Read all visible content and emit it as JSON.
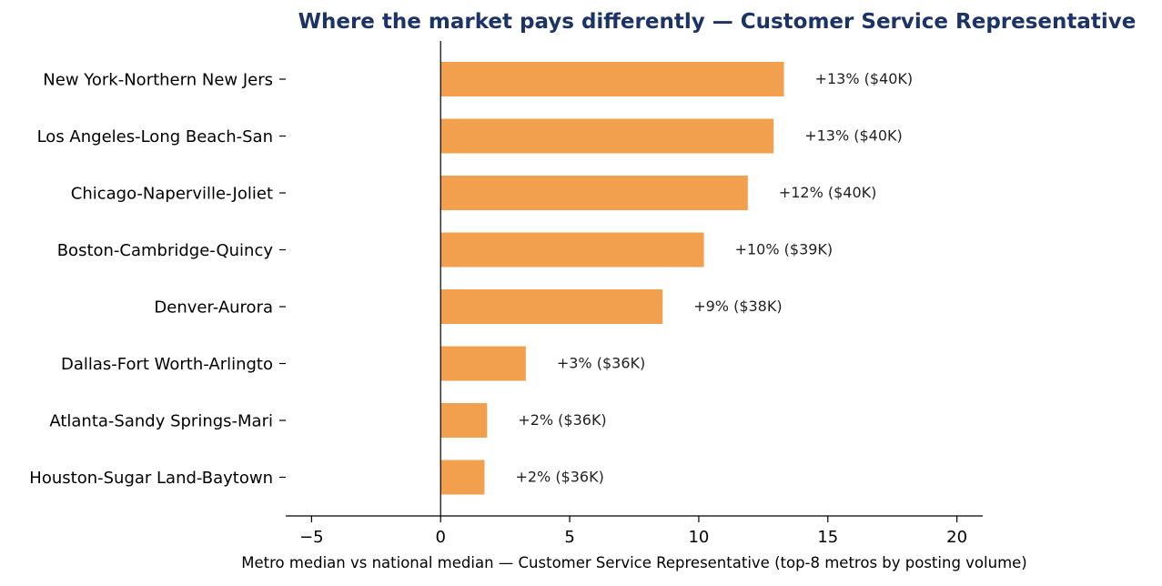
{
  "chart_data": {
    "type": "bar",
    "orientation": "horizontal",
    "title": "Where the market pays differently — Customer Service Representative",
    "xlabel": "Metro median vs national median — Customer Service Representative (top-8 metros by posting volume)",
    "ylabel": "",
    "xlim": [
      -6,
      21
    ],
    "xticks": [
      {
        "value": -5,
        "label": "−5"
      },
      {
        "value": 0,
        "label": "0"
      },
      {
        "value": 5,
        "label": "5"
      },
      {
        "value": 10,
        "label": "10"
      },
      {
        "value": 15,
        "label": "15"
      },
      {
        "value": 20,
        "label": "20"
      }
    ],
    "grid": false,
    "bar_color": "#f2a04e",
    "categories": [
      "New York-Northern New Jers",
      "Los Angeles-Long Beach-San",
      "Chicago-Naperville-Joliet",
      "Boston-Cambridge-Quincy",
      "Denver-Aurora",
      "Dallas-Fort Worth-Arlingto",
      "Atlanta-Sandy Springs-Mari",
      "Houston-Sugar Land-Baytown"
    ],
    "values": [
      13.3,
      12.9,
      11.9,
      10.2,
      8.6,
      3.3,
      1.8,
      1.7
    ],
    "data_labels": [
      "+13%  ($40K)",
      "+13%  ($40K)",
      "+12%  ($40K)",
      "+10%  ($39K)",
      "+9%  ($38K)",
      "+3%  ($36K)",
      "+2%  ($36K)",
      "+2%  ($36K)"
    ]
  }
}
